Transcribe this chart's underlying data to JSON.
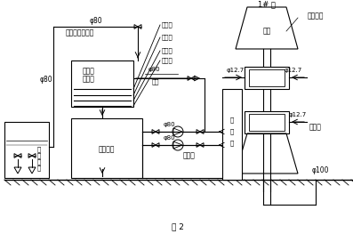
{
  "title": "图 2",
  "bg_color": "#ffffff",
  "line_color": "#000000",
  "labels": {
    "phi80_top": "φ80",
    "tap_water": "自来水（备用）",
    "phi80_left": "φ80",
    "sand_filter_l1": "简易砂",
    "sand_filter_l2": "滤装置",
    "pump_station_l1": "梨",
    "pump_station_l2": "站",
    "pump_station_l3": "后",
    "pump_station_l4": "池",
    "circ_tank": "循环水箱",
    "recycle_water": "回收水",
    "phi80_mid1": "φ80",
    "phi80_mid2": "φ80",
    "hose_label": "软管",
    "pump_label": "1# 泵",
    "motor": "电机",
    "thrust_bearing": "推力轴承",
    "phi12_7_left": "φ12.7",
    "phi12_7_right1": "φ12.7",
    "phi12_7_right2": "φ12.7",
    "packing_gland": "填料函",
    "return_pipe_l1": "回",
    "return_pipe_l2": "水",
    "return_pipe_l3": "管",
    "phi100": "φ100",
    "zhong_sui": "中碎层",
    "xiao_sui": "小碎层",
    "cu_sha": "粗砂层",
    "xi_sha": "细砂层",
    "phi80_filter": "φ80"
  },
  "figsize": [
    3.97,
    2.63
  ],
  "dpi": 100
}
